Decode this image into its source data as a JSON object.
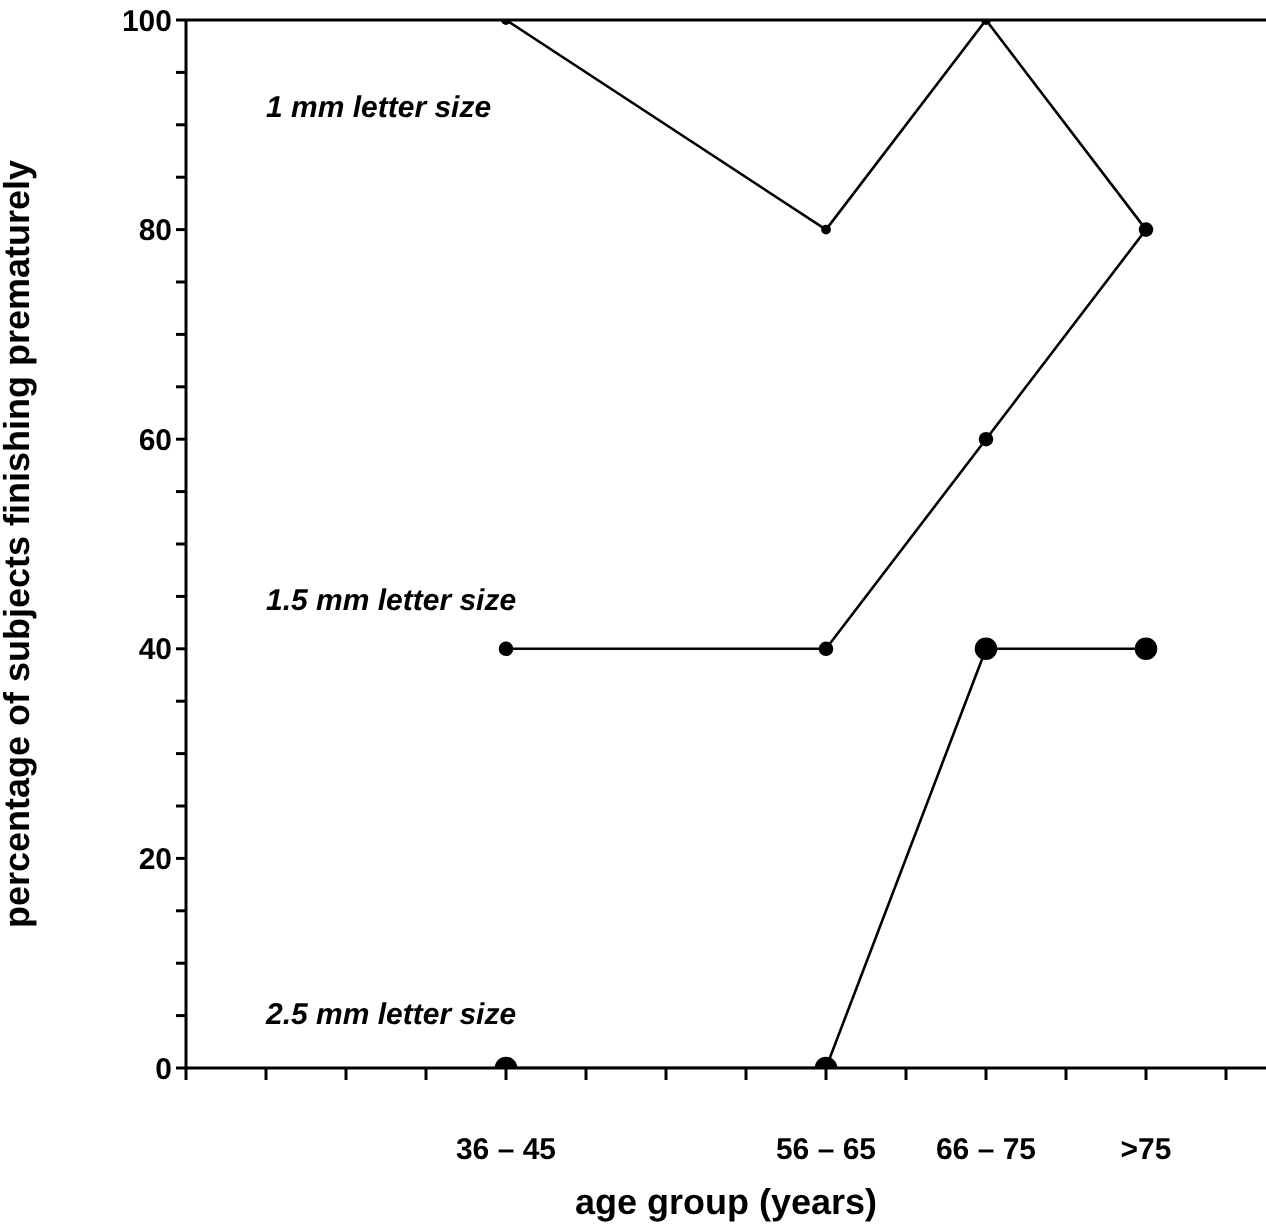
{
  "chart_data": {
    "type": "line",
    "xlabel": "age group (years)",
    "ylabel": "percentage of subjects finishing prematurely",
    "categories": [
      null,
      null,
      "36 – 45",
      null,
      "56 – 65",
      "66 – 75",
      ">75"
    ],
    "series": [
      {
        "name": "1 mm letter size",
        "color": "#000000",
        "values": [
          null,
          null,
          100,
          null,
          80,
          100,
          80
        ]
      },
      {
        "name": "1.5 mm letter size",
        "color": "#000000",
        "values": [
          null,
          null,
          40,
          null,
          40,
          60,
          80
        ]
      },
      {
        "name": "2.5 mm letter size",
        "color": "#000000",
        "values": [
          null,
          null,
          0,
          null,
          0,
          40,
          40
        ]
      }
    ],
    "ylim": [
      0,
      100
    ],
    "yticks": [
      0,
      {
        "value": 5,
        "label": null
      },
      {
        "value": 10,
        "label": null
      },
      {
        "value": 15,
        "label": null
      },
      20,
      {
        "value": 25,
        "label": null
      },
      {
        "value": 30,
        "label": null
      },
      {
        "value": 35,
        "label": null
      },
      40,
      {
        "value": 45,
        "label": null
      },
      {
        "value": 50,
        "label": null
      },
      {
        "value": 55,
        "label": null
      },
      60,
      {
        "value": 65,
        "label": null
      },
      {
        "value": 70,
        "label": null
      },
      {
        "value": 75,
        "label": null
      },
      80,
      {
        "value": 85,
        "label": null
      },
      {
        "value": 90,
        "label": null
      },
      {
        "value": 95,
        "label": null
      },
      100
    ],
    "ref_lines": [
      {
        "axis": "y",
        "value": 100
      }
    ],
    "marker": "circle",
    "line_style": "solid"
  }
}
